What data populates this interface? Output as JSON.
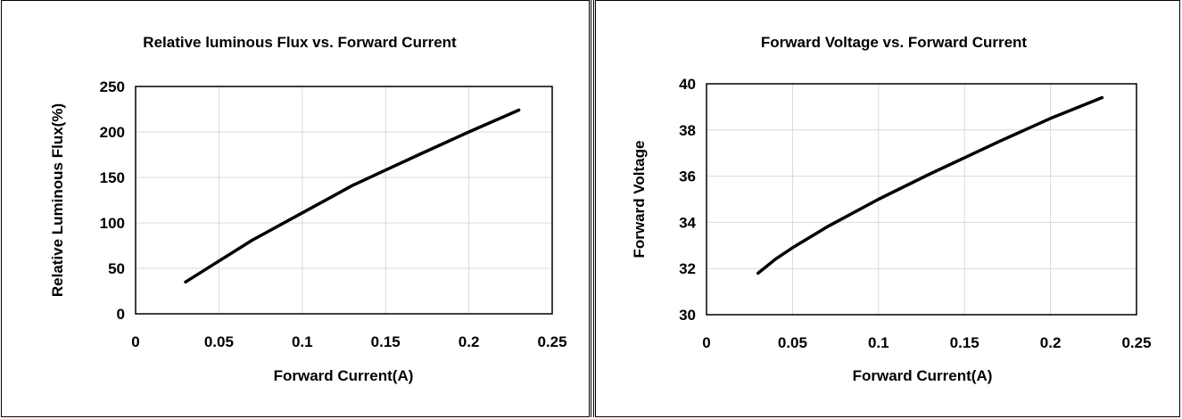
{
  "chart_data": [
    {
      "type": "line",
      "title": "Relative luminous Flux vs. Forward Current",
      "xlabel": "Forward Current(A)",
      "ylabel": "Relative Luminous Flux(%)",
      "xlim": [
        0,
        0.25
      ],
      "ylim": [
        0,
        250
      ],
      "xticks": [
        "0",
        "0.05",
        "0.1",
        "0.15",
        "0.2",
        "0.25"
      ],
      "yticks": [
        "0",
        "50",
        "100",
        "150",
        "200",
        "250"
      ],
      "grid": true,
      "line_color": "#000000",
      "series": [
        {
          "x": [
            0.03,
            0.05,
            0.07,
            0.1,
            0.13,
            0.15,
            0.17,
            0.2,
            0.23
          ],
          "y": [
            35,
            58,
            81,
            111,
            141,
            158,
            175,
            200,
            224
          ]
        }
      ]
    },
    {
      "type": "line",
      "title": "Forward Voltage vs. Forward Current",
      "xlabel": "Forward Current(A)",
      "ylabel": "Forward Voltage",
      "xlim": [
        0,
        0.25
      ],
      "ylim": [
        30,
        40
      ],
      "xticks": [
        "0",
        "0.05",
        "0.1",
        "0.15",
        "0.2",
        "0.25"
      ],
      "yticks": [
        "30",
        "32",
        "34",
        "36",
        "38",
        "40"
      ],
      "grid": true,
      "line_color": "#000000",
      "series": [
        {
          "x": [
            0.03,
            0.035,
            0.04,
            0.05,
            0.07,
            0.1,
            0.13,
            0.15,
            0.17,
            0.2,
            0.23
          ],
          "y": [
            31.8,
            32.1,
            32.4,
            32.9,
            33.8,
            35.0,
            36.1,
            36.8,
            37.5,
            38.5,
            39.4
          ]
        }
      ]
    }
  ]
}
